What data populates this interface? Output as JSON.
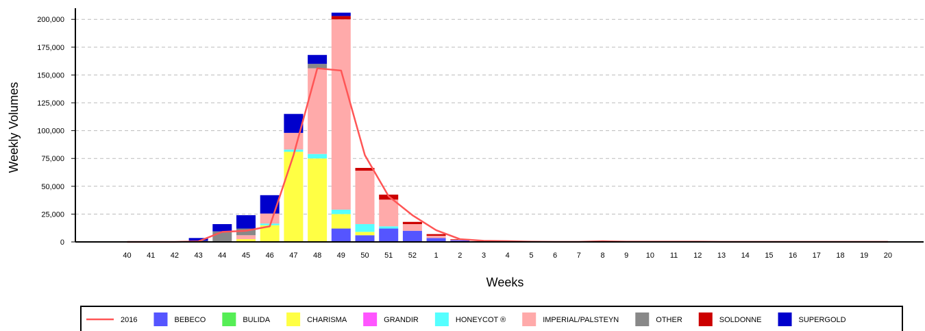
{
  "chart_data": {
    "type": "bar",
    "stacked": true,
    "xlabel": "Weeks",
    "ylabel": "Weekly Volumes",
    "ylim": [
      0,
      210000
    ],
    "yticks": [
      0,
      25000,
      50000,
      75000,
      100000,
      125000,
      150000,
      175000,
      200000
    ],
    "ytick_labels": [
      "0",
      "25,000",
      "50,000",
      "75,000",
      "100,000",
      "125,000",
      "150,000",
      "175,000",
      "200,000"
    ],
    "grid": "horizontal dashed",
    "legend_position": "bottom",
    "categories": [
      "40",
      "41",
      "42",
      "43",
      "44",
      "45",
      "46",
      "47",
      "48",
      "49",
      "50",
      "51",
      "52",
      "1",
      "2",
      "3",
      "4",
      "5",
      "6",
      "7",
      "8",
      "9",
      "10",
      "11",
      "12",
      "13",
      "14",
      "15",
      "16",
      "17",
      "18",
      "19",
      "20"
    ],
    "series": [
      {
        "name": "BEBECO",
        "color": "#5555ff",
        "values": [
          0,
          0,
          0,
          0,
          0,
          0,
          0,
          0,
          0,
          12000,
          6000,
          12000,
          10000,
          3500,
          1500,
          0,
          0,
          0,
          0,
          0,
          0,
          0,
          0,
          0,
          0,
          0,
          0,
          0,
          0,
          0,
          0,
          0,
          0
        ]
      },
      {
        "name": "BULIDA",
        "color": "#55ee55",
        "values": [
          0,
          0,
          0,
          0,
          0,
          0,
          0,
          0,
          0,
          0,
          0,
          0,
          0,
          0,
          0,
          0,
          0,
          0,
          0,
          0,
          0,
          0,
          0,
          0,
          0,
          0,
          0,
          0,
          0,
          0,
          0,
          0,
          0
        ]
      },
      {
        "name": "CHARISMA",
        "color": "#ffff44",
        "values": [
          0,
          0,
          0,
          0,
          0,
          2500,
          15000,
          81000,
          75000,
          13000,
          3000,
          0,
          0,
          0,
          0,
          0,
          0,
          0,
          0,
          0,
          0,
          0,
          0,
          0,
          0,
          0,
          0,
          0,
          0,
          0,
          0,
          0,
          0
        ]
      },
      {
        "name": "GRANDIR",
        "color": "#ff55ff",
        "values": [
          0,
          0,
          0,
          0,
          0,
          0,
          0,
          0,
          0,
          0,
          0,
          0,
          0,
          0,
          0,
          0,
          0,
          0,
          0,
          0,
          0,
          0,
          0,
          0,
          0,
          0,
          0,
          0,
          0,
          0,
          0,
          0,
          0
        ]
      },
      {
        "name": "HONEYCOT ®",
        "color": "#55ffff",
        "values": [
          0,
          0,
          0,
          0,
          0,
          0,
          1500,
          2000,
          4000,
          4000,
          7000,
          2000,
          0,
          0,
          0,
          0,
          0,
          0,
          0,
          0,
          0,
          0,
          0,
          0,
          0,
          0,
          0,
          0,
          0,
          0,
          0,
          0,
          0
        ]
      },
      {
        "name": "IMPERIAL/PALSTEYN",
        "color": "#ffaaaa",
        "values": [
          0,
          0,
          0,
          0,
          0,
          3500,
          9000,
          15000,
          77000,
          171000,
          48000,
          24000,
          6000,
          2000,
          500,
          0,
          0,
          0,
          0,
          0,
          0,
          0,
          0,
          0,
          0,
          0,
          0,
          0,
          0,
          0,
          0,
          0,
          0
        ]
      },
      {
        "name": "OTHER",
        "color": "#888888",
        "values": [
          0,
          0,
          0,
          1000,
          9500,
          6000,
          0,
          0,
          4000,
          0,
          0,
          0,
          0,
          0,
          0,
          0,
          0,
          0,
          0,
          0,
          0,
          0,
          0,
          0,
          0,
          0,
          0,
          0,
          0,
          0,
          0,
          0,
          0
        ]
      },
      {
        "name": "SOLDONNE",
        "color": "#cc0000",
        "values": [
          0,
          0,
          0,
          0,
          0,
          0,
          0,
          0,
          0,
          3000,
          2500,
          4500,
          2000,
          1500,
          500,
          0,
          0,
          0,
          0,
          0,
          0,
          0,
          0,
          0,
          0,
          0,
          0,
          0,
          0,
          0,
          0,
          0,
          0
        ]
      },
      {
        "name": "SUPERGOLD",
        "color": "#0000cc",
        "values": [
          0,
          0,
          0,
          2500,
          6500,
          12000,
          16500,
          17000,
          8000,
          3000,
          0,
          0,
          0,
          0,
          0,
          0,
          0,
          0,
          0,
          0,
          0,
          0,
          0,
          0,
          0,
          0,
          0,
          0,
          0,
          0,
          0,
          0,
          0
        ]
      }
    ],
    "lines": [
      {
        "name": "2016",
        "color": "#ff5555",
        "values": [
          0,
          0,
          0,
          500,
          9000,
          10000,
          14000,
          78000,
          156000,
          154000,
          78000,
          41000,
          24000,
          10500,
          2500,
          1000,
          700,
          200,
          100,
          100,
          600,
          200,
          200,
          200,
          200,
          100,
          100,
          100,
          100,
          100,
          100,
          100,
          100
        ]
      }
    ]
  }
}
